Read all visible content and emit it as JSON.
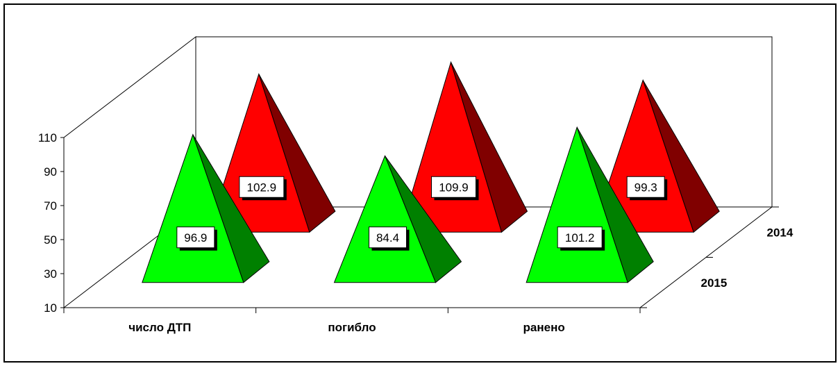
{
  "chart_data": {
    "type": "bar",
    "bar_shape": "3d-pyramid",
    "categories": [
      "число ДТП",
      "погибло",
      "ранено"
    ],
    "series": [
      {
        "name": "2014",
        "values": [
          102.9,
          109.9,
          99.3
        ]
      },
      {
        "name": "2015",
        "values": [
          96.9,
          84.4,
          101.2
        ]
      }
    ],
    "ylim": [
      10,
      110
    ],
    "yticks": [
      "110",
      "90",
      "70",
      "50",
      "30",
      "10"
    ],
    "grid": false,
    "data_labels": true,
    "colors": {
      "2014": {
        "front": "#ff0000",
        "side": "#800000"
      },
      "2015": {
        "front": "#00ff00",
        "side": "#008000"
      }
    }
  }
}
